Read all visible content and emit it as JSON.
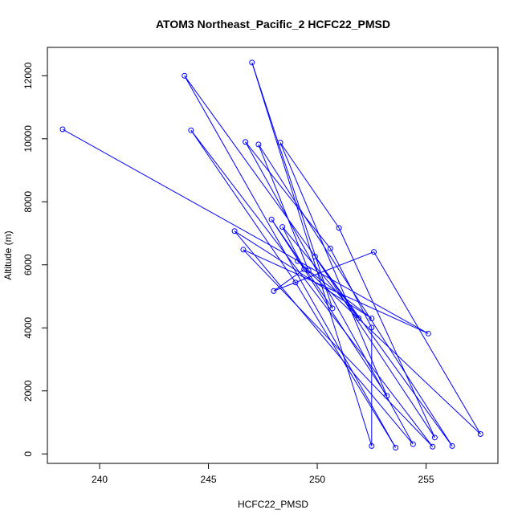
{
  "chart_data": {
    "type": "line",
    "title": "ATOM3 Northeast_Pacific_2 HCFC22_PMSD",
    "xlabel": "HCFC22_PMSD",
    "ylabel": "Altitude (m)",
    "xlim": [
      237.6,
      258.3
    ],
    "ylim": [
      -300,
      12900
    ],
    "xticks": [
      240,
      245,
      250,
      255
    ],
    "yticks": [
      0,
      2000,
      4000,
      6000,
      8000,
      10000,
      12000
    ],
    "grid": false,
    "series_color": "#0000ff",
    "marker": "open-circle",
    "points": [
      {
        "x": 238.3,
        "y": 10300
      },
      {
        "x": 255.1,
        "y": 3820
      },
      {
        "x": 246.6,
        "y": 6480
      },
      {
        "x": 255.3,
        "y": 230
      },
      {
        "x": 244.2,
        "y": 10270
      },
      {
        "x": 249.0,
        "y": 5440
      },
      {
        "x": 253.6,
        "y": 200
      },
      {
        "x": 243.9,
        "y": 12000
      },
      {
        "x": 256.2,
        "y": 250
      },
      {
        "x": 247.3,
        "y": 9820
      },
      {
        "x": 249.6,
        "y": 5820
      },
      {
        "x": 252.5,
        "y": 4300
      },
      {
        "x": 246.2,
        "y": 7070
      },
      {
        "x": 254.4,
        "y": 310
      },
      {
        "x": 246.7,
        "y": 9900
      },
      {
        "x": 250.6,
        "y": 6520
      },
      {
        "x": 252.5,
        "y": 4010
      },
      {
        "x": 252.5,
        "y": 250
      },
      {
        "x": 247.0,
        "y": 12420
      },
      {
        "x": 250.7,
        "y": 4620
      },
      {
        "x": 247.9,
        "y": 7440
      },
      {
        "x": 253.2,
        "y": 1840
      },
      {
        "x": 248.3,
        "y": 9880
      },
      {
        "x": 251.0,
        "y": 7170
      },
      {
        "x": 255.4,
        "y": 520
      },
      {
        "x": 249.9,
        "y": 6260
      },
      {
        "x": 251.9,
        "y": 4310
      },
      {
        "x": 248.4,
        "y": 7200
      },
      {
        "x": 249.4,
        "y": 5860
      },
      {
        "x": 248.0,
        "y": 5170
      },
      {
        "x": 252.6,
        "y": 6410
      },
      {
        "x": 257.5,
        "y": 630
      },
      {
        "x": 249.1,
        "y": 6120
      }
    ]
  }
}
